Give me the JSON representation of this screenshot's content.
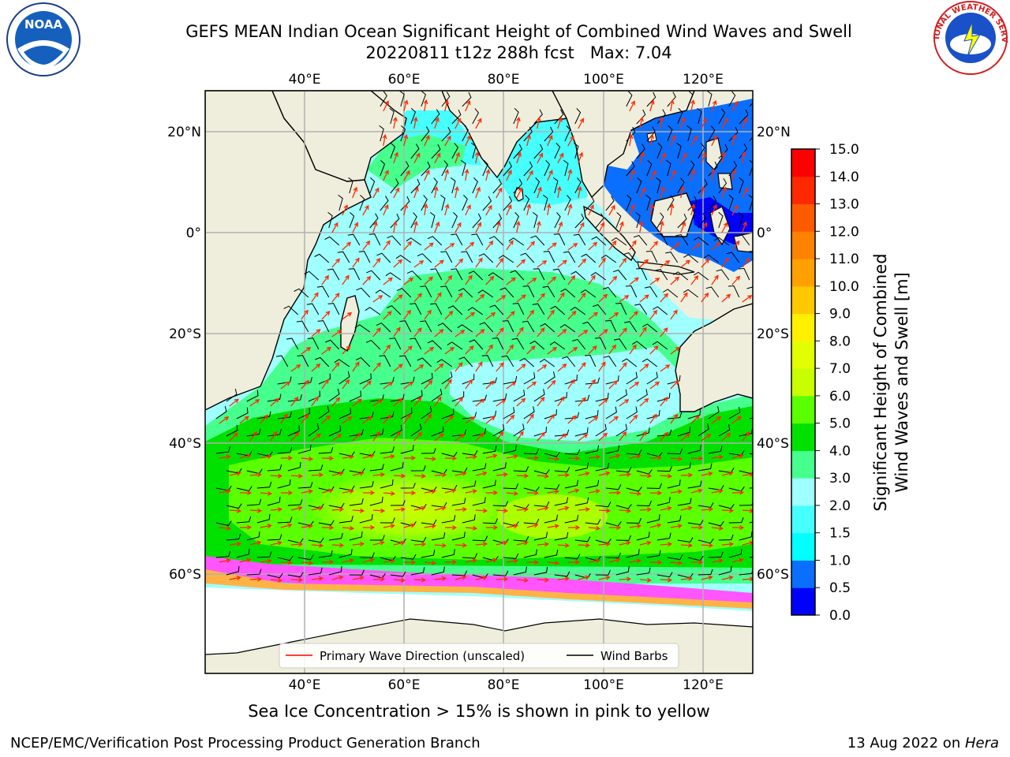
{
  "title": {
    "line1": "GEFS MEAN Indian Ocean Significant Height of Combined Wind Waves and Swell",
    "line2": "20220811 t12z 288h fcst   Max: 7.04"
  },
  "logos": {
    "left": {
      "label": "NOAA",
      "icon": "noaa-logo-icon"
    },
    "right": {
      "text": "NATIONAL WEATHER SERVICE",
      "icon": "nws-logo-icon"
    }
  },
  "map": {
    "lon_ticks_top": [
      "40°E",
      "60°E",
      "80°E",
      "100°E",
      "120°E"
    ],
    "lon_ticks_bottom": [
      "40°E",
      "60°E",
      "80°E",
      "100°E",
      "120°E"
    ],
    "lat_ticks_left": [
      "20°N",
      "0°",
      "20°S",
      "40°S",
      "60°S"
    ],
    "lat_ticks_right": [
      "20°N",
      "0°",
      "20°S",
      "40°S",
      "60°S"
    ],
    "extent": {
      "lon_min": 20,
      "lon_max": 130,
      "lat_min": -70,
      "lat_max": 28
    },
    "colors": {
      "land": "#efeedc",
      "ice": "#ffffff",
      "coast": "#000000",
      "grid": "#b0b0b0",
      "wave_arrow": "#ff2a00",
      "wind_barb": "#000000"
    },
    "legend": {
      "items": [
        {
          "label": "Primary Wave Direction (unscaled)",
          "color": "#ff0000"
        },
        {
          "label": "Wind Barbs",
          "color": "#000000"
        }
      ]
    }
  },
  "colorbar": {
    "label_line1": "Significant Height of Combined",
    "label_line2": "Wind Waves and Swell [m]",
    "ticks": [
      "0.0",
      "0.5",
      "1.0",
      "1.5",
      "2.0",
      "3.0",
      "4.0",
      "5.0",
      "6.0",
      "7.0",
      "8.0",
      "9.0",
      "10.0",
      "11.0",
      "12.0",
      "13.0",
      "14.0",
      "15.0"
    ],
    "colors": [
      "#0000ff",
      "#0a6eff",
      "#00ffff",
      "#46ffff",
      "#a0ffff",
      "#46ff8c",
      "#00e100",
      "#5aff00",
      "#c8ff00",
      "#e1ff00",
      "#fff000",
      "#ffc800",
      "#ffa000",
      "#ff8200",
      "#ff5a00",
      "#ff2800",
      "#ff0000"
    ]
  },
  "footer": {
    "ice_note": "Sea Ice Concentration > 15% is shown in pink to yellow",
    "left": "NCEP/EMC/Verification Post Processing Product Generation Branch",
    "right_prefix": "13 Aug 2022 on ",
    "right_host": "Hera"
  }
}
